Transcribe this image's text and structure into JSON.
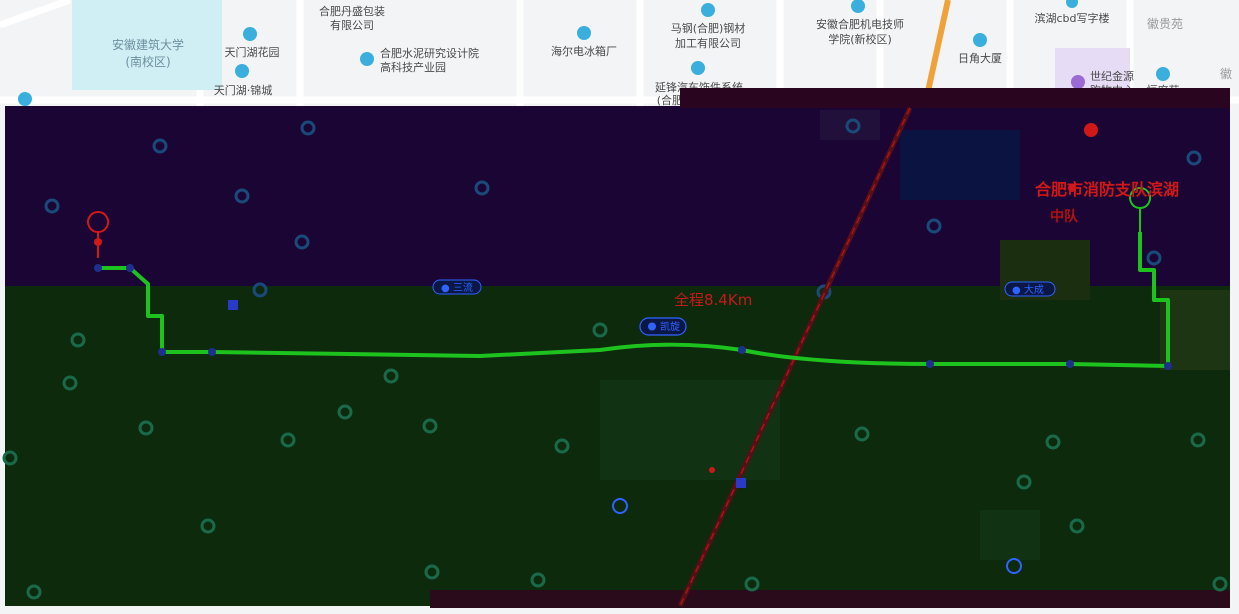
{
  "colors": {
    "route": "#1ec21e",
    "map_bg": "#f3f4f6",
    "dark_overlay_top": "#1a0534",
    "dark_overlay_bottom": "#0d2a0d",
    "fire_station": "#d01818",
    "poi_blue": "#3aaedc",
    "poi_purple": "#9b6ad6",
    "campus_fill": "#cfeff5",
    "highway_orange": "#f0a23a"
  },
  "map": {
    "overlay_distance_label": "全程8.4Km",
    "fire_station_line1": "合肥市消防支队滨湖",
    "fire_station_line2": "中队"
  },
  "pills": {
    "left": "● 三流",
    "center": "凯旋",
    "right": "● 大成"
  },
  "labels": {
    "campus": {
      "line1": "安徽建筑大学",
      "line2": "(南校区)"
    },
    "poi": [
      {
        "id": "tianmenhu_garden",
        "text": "天门湖花园",
        "icon": "community-icon"
      },
      {
        "id": "tianmenhu_jincheng",
        "text": "天门湖·锦城",
        "icon": "community-icon"
      },
      {
        "id": "hefei_dansheng_1",
        "text": "合肥丹盛包装",
        "icon": "factory-icon"
      },
      {
        "id": "hefei_dansheng_2",
        "text": "有限公司",
        "icon": ""
      },
      {
        "id": "cement_1",
        "text": "合肥水泥研究设计院",
        "icon": "company-icon"
      },
      {
        "id": "cement_2",
        "text": "高科技产业园",
        "icon": ""
      },
      {
        "id": "haier",
        "text": "海尔电冰箱厂",
        "icon": "company-icon"
      },
      {
        "id": "magang_1",
        "text": "马钢(合肥)钢材",
        "icon": "company-icon"
      },
      {
        "id": "magang_2",
        "text": "加工有限公司",
        "icon": ""
      },
      {
        "id": "yanfeng_1",
        "text": "延锋汽车饰件系统",
        "icon": "company-icon"
      },
      {
        "id": "yanfeng_2",
        "text": "(合肥)",
        "icon": ""
      },
      {
        "id": "mech_school_1",
        "text": "安徽合肥机电技师",
        "icon": "school-icon"
      },
      {
        "id": "mech_school_2",
        "text": "学院(新校区)",
        "icon": ""
      },
      {
        "id": "rijiao",
        "text": "日角大厦",
        "icon": "building-icon"
      },
      {
        "id": "binhu_cbd",
        "text": "滨湖cbd写字楼",
        "icon": "building-icon"
      },
      {
        "id": "shiji_1",
        "text": "世纪金源",
        "icon": "mall-icon"
      },
      {
        "id": "shiji_2",
        "text": "购物中心",
        "icon": ""
      },
      {
        "id": "henghui",
        "text": "恒府苑",
        "icon": "community-icon"
      }
    ],
    "gray": {
      "huiguiyuan": "徽贵苑",
      "edge_hui": "徽"
    }
  }
}
